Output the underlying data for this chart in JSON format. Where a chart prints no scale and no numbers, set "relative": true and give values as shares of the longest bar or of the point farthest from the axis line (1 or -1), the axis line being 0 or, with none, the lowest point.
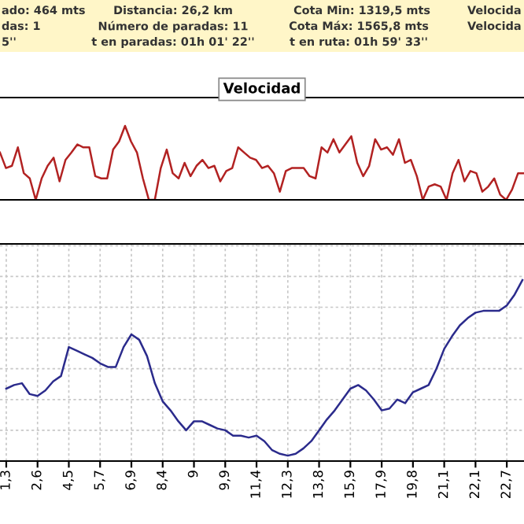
{
  "chart_data": [
    {
      "type": "other",
      "annotations": [
        "ado: 464 mts",
        "Distancia: 26,2 km",
        "Cota Min: 1319,5 mts",
        "Velocida",
        "das: 1",
        "Número de paradas: 11",
        "Cota Máx: 1565,8 mts",
        "Velocida",
        "5''",
        "t en paradas: 01h 01' 22''",
        "t en ruta: 01h 59' 33''"
      ]
    },
    {
      "type": "line",
      "title": "Velocidad",
      "relative": true,
      "tick_labels": false,
      "categories": [
        null,
        null,
        null,
        null,
        null,
        null,
        null,
        null,
        null,
        null,
        null,
        null,
        null,
        null,
        null,
        null,
        null,
        null,
        null,
        null,
        null,
        null,
        null,
        null,
        null,
        null,
        null,
        null,
        null,
        null,
        null,
        null,
        null,
        null,
        null,
        null,
        null,
        null,
        null,
        null,
        null,
        null,
        null,
        null,
        null,
        null,
        null,
        null,
        null,
        null,
        null,
        null,
        null,
        null,
        null,
        null,
        null,
        null,
        null,
        null,
        null,
        null,
        null,
        null,
        null,
        null,
        null,
        null,
        null,
        null,
        null,
        null,
        null,
        null,
        null,
        null,
        null,
        null,
        null,
        null,
        null,
        null,
        null,
        null,
        null,
        null,
        null,
        null,
        null
      ],
      "series": [
        {
          "color": "#b22222",
          "values": [
            0.64,
            0.43,
            0.46,
            0.71,
            0.36,
            0.29,
            0,
            0.29,
            0.46,
            0.57,
            0.25,
            0.54,
            0.64,
            0.75,
            0.71,
            0.71,
            0.32,
            0.29,
            0.29,
            0.68,
            0.79,
            1,
            0.79,
            0.64,
            0.29,
            0,
            0,
            0.43,
            0.68,
            0.36,
            0.29,
            0.5,
            0.32,
            0.46,
            0.54,
            0.43,
            0.46,
            0.25,
            0.39,
            0.43,
            0.71,
            0.64,
            0.57,
            0.54,
            0.43,
            0.46,
            0.36,
            0.11,
            0.39,
            0.43,
            0.43,
            0.43,
            0.32,
            0.29,
            0.71,
            0.64,
            0.82,
            0.64,
            0.75,
            0.86,
            0.5,
            0.32,
            0.46,
            0.82,
            0.68,
            0.71,
            0.61,
            0.82,
            0.5,
            0.54,
            0.32,
            0,
            0.18,
            0.21,
            0.18,
            0,
            0.36,
            0.54,
            0.25,
            0.39,
            0.36,
            0.11,
            0.18,
            0.29,
            0.07,
            0,
            0.14,
            0.36,
            0.36
          ]
        }
      ]
    },
    {
      "type": "line",
      "relative": true,
      "grid": true,
      "tick_labels": "x",
      "categories": [
        "1,3",
        null,
        null,
        null,
        "2,6",
        null,
        null,
        null,
        "4,5",
        null,
        null,
        null,
        "5,7",
        null,
        null,
        null,
        "6,9",
        null,
        null,
        null,
        "8,4",
        null,
        null,
        null,
        "9",
        null,
        null,
        null,
        "9,9",
        null,
        null,
        null,
        "11,4",
        null,
        null,
        null,
        "12,3",
        null,
        null,
        null,
        "13,8",
        null,
        null,
        null,
        "15,9",
        null,
        null,
        null,
        "17,9",
        null,
        null,
        null,
        "19,8",
        null,
        null,
        null,
        "21,1",
        null,
        null,
        null,
        "22,1",
        null,
        null,
        null,
        "22,7",
        null,
        null
      ],
      "series": [
        {
          "color": "#2b2b8c",
          "values": [
            0.4,
            0.42,
            0.43,
            0.37,
            0.36,
            0.39,
            0.44,
            0.47,
            0.63,
            0.61,
            0.59,
            0.57,
            0.54,
            0.52,
            0.52,
            0.63,
            0.7,
            0.67,
            0.58,
            0.43,
            0.33,
            0.28,
            0.22,
            0.17,
            0.22,
            0.22,
            0.2,
            0.18,
            0.17,
            0.14,
            0.14,
            0.13,
            0.14,
            0.11,
            0.06,
            0.04,
            0.03,
            0.04,
            0.07,
            0.11,
            0.17,
            0.23,
            0.28,
            0.34,
            0.4,
            0.42,
            0.39,
            0.34,
            0.28,
            0.29,
            0.34,
            0.32,
            0.38,
            0.4,
            0.42,
            0.51,
            0.62,
            0.69,
            0.75,
            0.79,
            0.82,
            0.83,
            0.83,
            0.83,
            0.86,
            0.92,
            1.0
          ]
        }
      ]
    }
  ]
}
